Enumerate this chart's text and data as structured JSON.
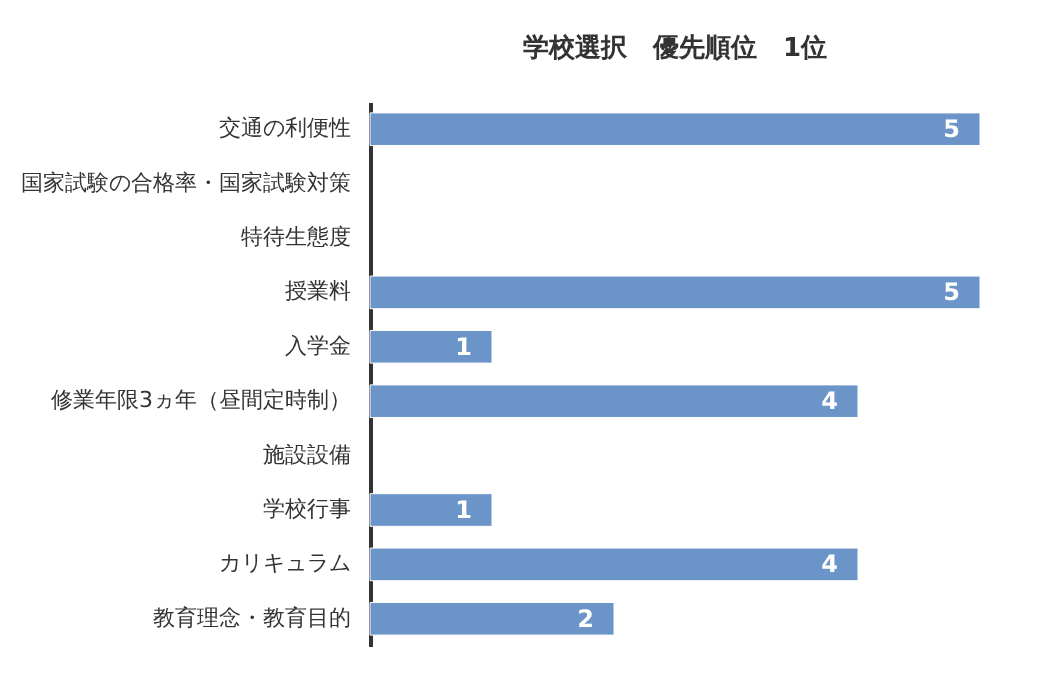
{
  "chart_data": {
    "type": "bar",
    "orientation": "horizontal",
    "title": "学校選択　優先順位　1位",
    "categories": [
      "交通の利便性",
      "国家試験の合格率・国家試験対策",
      "特待生態度",
      "授業料",
      "入学金",
      "修業年限3ヵ年（昼間定時制）",
      "施設設備",
      "学校行事",
      "カリキュラム",
      "教育理念・教育目的"
    ],
    "values": [
      5,
      null,
      null,
      5,
      1,
      4,
      null,
      1,
      4,
      2
    ],
    "color": "#6b95c9",
    "xlim": [
      0,
      5
    ],
    "data_labels": true,
    "tick_labels": "y"
  }
}
